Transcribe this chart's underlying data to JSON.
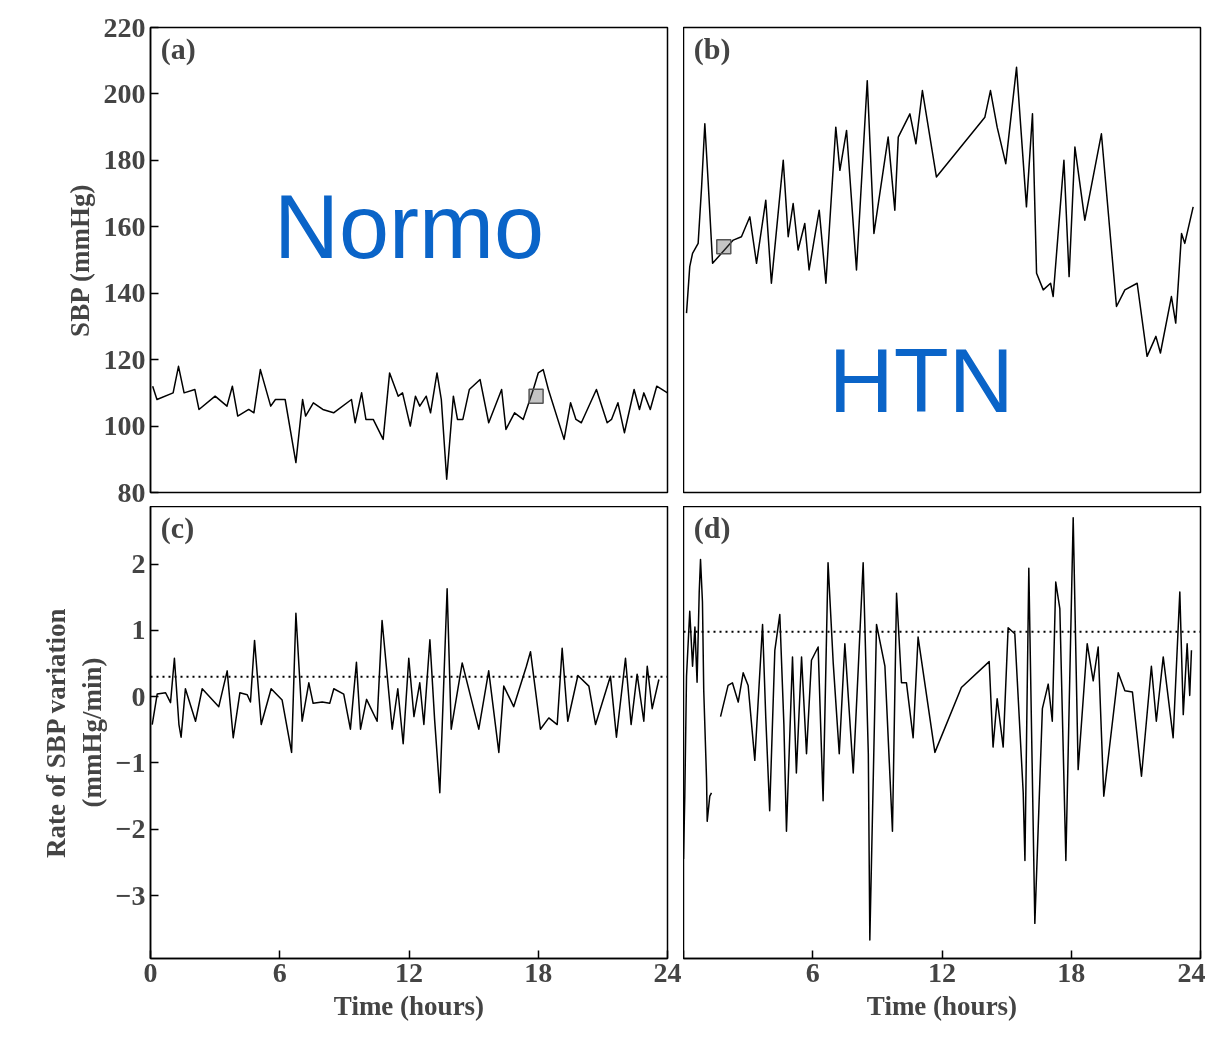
{
  "chart_data": [
    {
      "type": "line",
      "title": "(a)",
      "ylabel": "SBP (mmHg)",
      "xlim": [
        0,
        24
      ],
      "ylim": [
        80,
        220
      ],
      "xticks": [
        0,
        6,
        12,
        18,
        24
      ],
      "yticks": [
        80,
        100,
        120,
        140,
        160,
        180,
        200,
        220
      ],
      "tick_labels": "y",
      "annotations": [
        "Normo"
      ],
      "series": [
        {
          "color": "#000000",
          "line_style": "solid",
          "x": [
            0.1,
            0.3,
            1.05,
            1.3,
            1.56,
            2.06,
            2.25,
            3.0,
            3.55,
            3.8,
            4.05,
            4.56,
            4.8,
            5.1,
            5.58,
            5.8,
            6.25,
            6.75,
            7.06,
            7.2,
            7.56,
            8.0,
            8.5,
            9.33,
            9.5,
            9.8,
            10,
            10.34,
            10.8,
            11.1,
            11.5,
            11.7,
            12.06,
            12.3,
            12.5,
            12.8,
            13,
            13.3,
            13.5,
            13.75,
            14.06,
            14.25,
            14.5,
            14.8,
            15.3,
            15.7,
            16.3,
            16.5,
            16.9,
            17.3,
            17.77,
            18,
            18.23,
            18.47,
            19.2,
            19.5,
            19.75,
            20,
            20.7,
            21.2,
            21.4,
            21.7,
            22,
            22.45,
            22.7,
            22.9,
            23.2,
            23.5,
            24
          ],
          "values": [
            112,
            108,
            110,
            118,
            110,
            111,
            105,
            109,
            106,
            112,
            103,
            105,
            104,
            117,
            106,
            108,
            108,
            89,
            108,
            103,
            107,
            105,
            104,
            108,
            101,
            110,
            102,
            102,
            96,
            116,
            109,
            110,
            100,
            109,
            106,
            109,
            104,
            116,
            108,
            84,
            109,
            102,
            102,
            111,
            114,
            101,
            111,
            99,
            104,
            102,
            111,
            116,
            117,
            111,
            96,
            107,
            102,
            101,
            111,
            101,
            102,
            107,
            98,
            111,
            105,
            110,
            105,
            112,
            110
          ]
        },
        {
          "type": "scatter",
          "marker": "square",
          "color": "#555555",
          "x": [
            17.9
          ],
          "values": [
            109
          ]
        }
      ]
    },
    {
      "type": "line",
      "title": "(b)",
      "xlim": [
        0,
        24
      ],
      "ylim": [
        80,
        220
      ],
      "xticks": [
        0,
        6,
        12,
        18,
        24
      ],
      "yticks": [
        80,
        100,
        120,
        140,
        160,
        180,
        200,
        220
      ],
      "tick_labels": false,
      "annotations": [
        "HTN"
      ],
      "series": [
        {
          "color": "#000000",
          "line_style": "solid",
          "x": [
            0.14,
            0.29,
            0.42,
            0.68,
            0.84,
            0.99,
            1.14,
            1.35,
            2.31,
            2.69,
            3.08,
            3.39,
            3.82,
            4.08,
            4.63,
            4.86,
            5.09,
            5.32,
            5.63,
            5.83,
            6.3,
            6.61,
            7.07,
            7.26,
            7.57,
            8.03,
            8.53,
            8.84,
            9.5,
            9.81,
            9.97,
            10.51,
            10.79,
            11.09,
            11.74,
            13.99,
            14.25,
            14.56,
            14.96,
            15.46,
            15.92,
            16.2,
            16.39,
            16.7,
            17.04,
            17.16,
            17.66,
            17.9,
            18.17,
            18.63,
            19.4,
            20.1,
            20.49,
            21.06,
            21.52,
            21.93,
            22.14,
            22.65,
            22.85,
            23.12,
            23.27,
            23.66
          ],
          "values": [
            134,
            148,
            152,
            155,
            172,
            191,
            174,
            149,
            156,
            157,
            163,
            149,
            168,
            143,
            180,
            157,
            167,
            153,
            161,
            147,
            165,
            143,
            190,
            177,
            189,
            147,
            204,
            158,
            187,
            165,
            187,
            194,
            185,
            201,
            175,
            193,
            201,
            190,
            179,
            208,
            166,
            194,
            146,
            141,
            143,
            139,
            180,
            145,
            184,
            162,
            188,
            136,
            141,
            143,
            121,
            127,
            122,
            139,
            131,
            158,
            155,
            166
          ]
        },
        {
          "type": "scatter",
          "marker": "square",
          "color": "#555555",
          "x": [
            1.87
          ],
          "values": [
            154
          ]
        }
      ]
    },
    {
      "type": "line",
      "title": "(c)",
      "ylabel": "Rate of SBP variation\n(mmHg/min)",
      "xlabel": "Time (hours)",
      "xlim": [
        0,
        24
      ],
      "ylim": [
        -3.95,
        2.87
      ],
      "xticks": [
        0,
        6,
        12,
        18,
        24
      ],
      "yticks": [
        -3,
        -2,
        -1,
        0,
        1,
        2
      ],
      "ref_lines": [
        {
          "axis": "y",
          "value": 0.3,
          "line_style": "dotted",
          "color": "#000000"
        }
      ],
      "series": [
        {
          "color": "#000000",
          "line_style": "solid",
          "x": [
            0.08,
            0.31,
            0.7,
            0.93,
            1.11,
            1.32,
            1.42,
            1.62,
            2.09,
            2.4,
            3.17,
            3.56,
            3.84,
            4.15,
            4.49,
            4.64,
            4.83,
            5.14,
            5.6,
            6.11,
            6.55,
            6.75,
            7.04,
            7.35,
            7.55,
            7.97,
            8.32,
            8.51,
            8.97,
            9.28,
            9.56,
            9.75,
            10.03,
            10.52,
            10.75,
            11.22,
            11.48,
            11.73,
            11.99,
            12.23,
            12.5,
            12.69,
            12.97,
            13.19,
            13.43,
            13.77,
            13.96,
            14.47,
            15.24,
            15.7,
            16.17,
            16.4,
            16.86,
            17.45,
            17.64,
            18.1,
            18.49,
            18.88,
            19.11,
            19.37,
            19.84,
            20.35,
            20.66,
            21.35,
            21.63,
            22.05,
            22.31,
            22.59,
            22.9,
            23.06,
            23.29,
            23.6
          ],
          "values": [
            -0.42,
            0.04,
            0.06,
            -0.09,
            0.58,
            -0.42,
            -0.61,
            0.12,
            -0.37,
            0.12,
            -0.15,
            0.39,
            -0.62,
            0.06,
            0.03,
            -0.08,
            0.85,
            -0.42,
            0.12,
            -0.05,
            -0.84,
            1.26,
            -0.37,
            0.21,
            -0.1,
            -0.08,
            -0.1,
            0.12,
            0.04,
            -0.49,
            0.52,
            -0.49,
            -0.04,
            -0.37,
            1.15,
            -0.49,
            0.12,
            -0.71,
            0.58,
            -0.3,
            0.21,
            -0.42,
            0.86,
            -0.35,
            -1.45,
            1.63,
            -0.49,
            0.51,
            -0.49,
            0.39,
            -0.84,
            0.16,
            -0.15,
            0.46,
            0.68,
            -0.49,
            -0.32,
            -0.42,
            0.73,
            -0.37,
            0.32,
            0.16,
            -0.42,
            0.31,
            -0.61,
            0.58,
            -0.42,
            0.34,
            -0.37,
            0.46,
            -0.18,
            0.26
          ]
        }
      ]
    },
    {
      "type": "line",
      "title": "(d)",
      "xlabel": "Time (hours)",
      "xlim": [
        0,
        24
      ],
      "ylim": [
        -3.95,
        2.87
      ],
      "xticks": [
        {
          "value": 0,
          "label": null
        },
        6,
        12,
        18,
        24
      ],
      "yticks": [
        -3,
        -2,
        -1,
        0,
        1,
        2
      ],
      "tick_labels": "x",
      "ref_lines": [
        {
          "axis": "y",
          "value": 0.98,
          "line_style": "dotted",
          "color": "#000000"
        }
      ],
      "series": [
        {
          "color": "#000000",
          "line_style": "solid",
          "x": [
            0.0,
            0.06,
            0.14,
            0.29,
            0.42,
            0.53,
            0.63,
            0.73,
            0.79,
            0.88,
            0.94,
            1.07,
            1.1,
            1.22,
            1.3,
            1.5,
            1.72,
            2.07,
            2.27,
            2.54,
            2.77,
            3.0,
            3.31,
            3.67,
            3.82,
            4.0,
            4.24,
            4.47,
            4.66,
            4.78,
            5.06,
            5.24,
            5.48,
            5.71,
            5.94,
            6.25,
            6.48,
            6.71,
            6.95,
            7.23,
            7.49,
            7.88,
            8.11,
            8.34,
            8.58,
            8.65,
            8.96,
            9.35,
            9.7,
            9.89,
            10.12,
            10.35,
            10.66,
            10.89,
            11.67,
            12.9,
            14.19,
            14.37,
            14.56,
            14.84,
            15.07,
            15.38,
            15.77,
            15.85,
            16.03,
            16.31,
            16.66,
            16.93,
            17.12,
            17.28,
            17.47,
            17.75,
            18.09,
            18.32,
            18.74,
            19.02,
            19.25,
            19.51,
            20.18,
            20.49,
            20.84,
            21.26,
            21.72,
            21.95,
            22.27,
            22.73,
            23.04,
            23.2,
            23.38,
            23.5,
            23.58
          ],
          "values": [
            -2.45,
            -1.5,
            0.31,
            1.29,
            0.46,
            1.05,
            0.22,
            1.58,
            2.07,
            1.43,
            0.09,
            -1.25,
            -1.88,
            -1.5,
            -1.45,
            null,
            -0.3,
            0.17,
            0.21,
            -0.08,
            0.36,
            0.17,
            -0.96,
            1.09,
            -0.32,
            -1.72,
            0.7,
            1.24,
            -0.42,
            -2.03,
            0.6,
            -1.15,
            0.6,
            -0.86,
            0.55,
            0.75,
            -1.57,
            2.02,
            0.51,
            -0.86,
            0.8,
            -1.15,
            0.41,
            2.02,
            -0.86,
            -3.67,
            1.09,
            0.46,
            -2.03,
            1.56,
            0.21,
            0.21,
            -0.62,
            0.9,
            -0.84,
            0.14,
            0.53,
            -0.76,
            -0.03,
            -0.76,
            1.04,
            0.95,
            -1.45,
            -2.47,
            1.94,
            -3.42,
            -0.18,
            0.19,
            -0.37,
            1.73,
            1.33,
            -2.47,
            2.7,
            -1.1,
            0.8,
            0.24,
            0.75,
            -1.5,
            0.36,
            0.09,
            0.07,
            -1.2,
            0.46,
            -0.37,
            0.6,
            -0.62,
            1.58,
            -0.27,
            0.8,
            0.02,
            0.7
          ]
        }
      ]
    }
  ]
}
